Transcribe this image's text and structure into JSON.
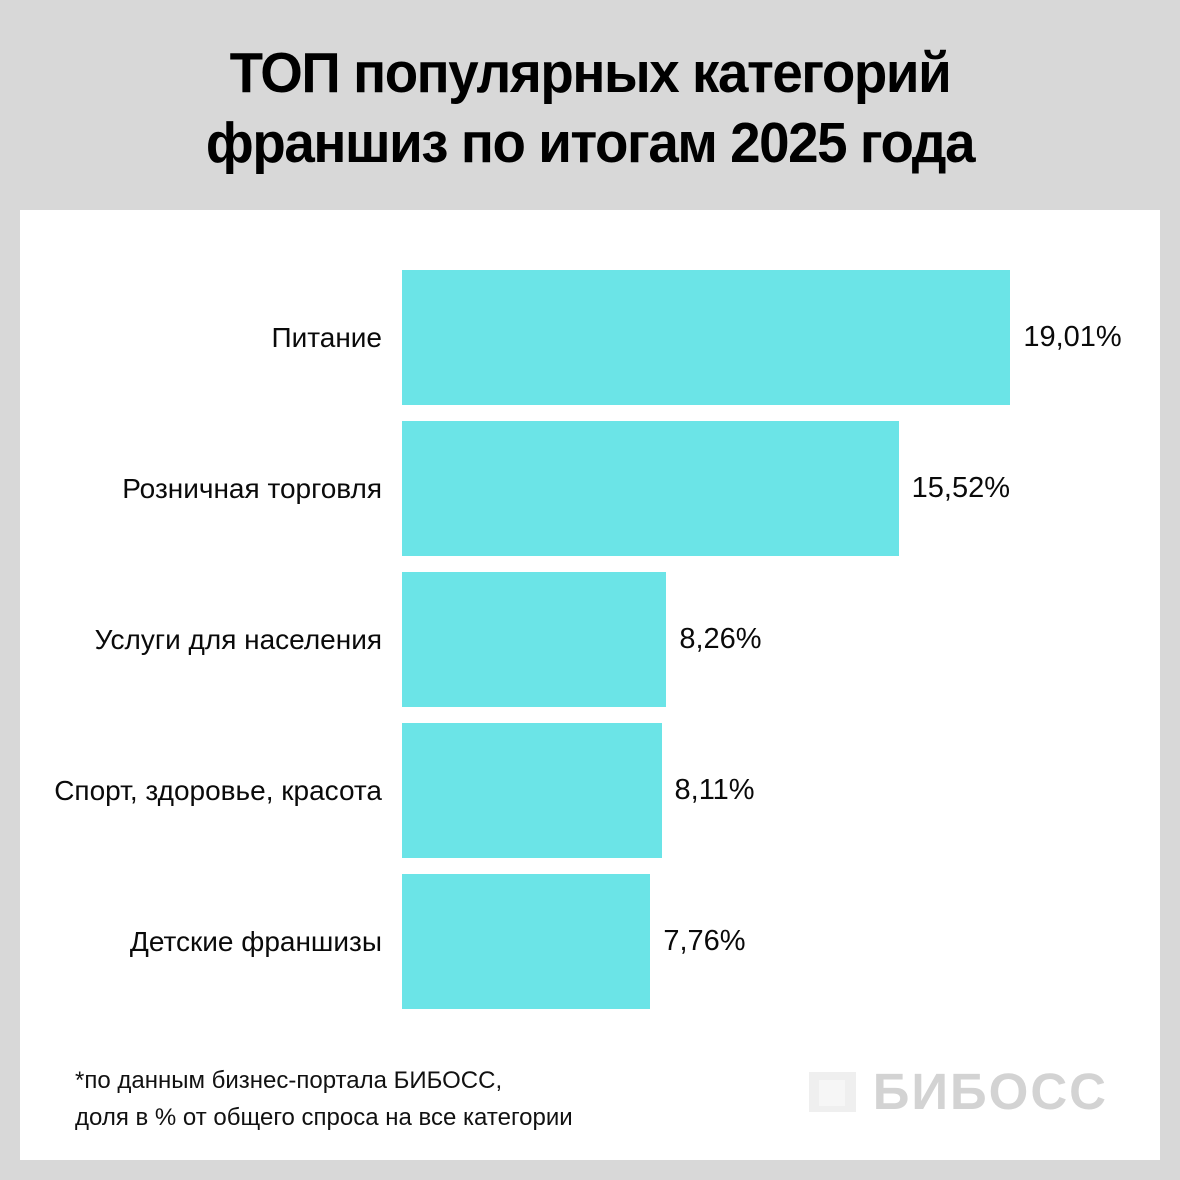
{
  "title": {
    "line1": "ТОП популярных категорий",
    "line2": "франшиз по итогам 2025 года"
  },
  "chart_data": {
    "type": "bar",
    "orientation": "horizontal",
    "title": "ТОП популярных категорий франшиз по итогам 2025 года",
    "categories": [
      "Питание",
      "Розничная торговля",
      "Услуги для населения",
      "Спорт, здоровье, красота",
      "Детские франшизы"
    ],
    "values": [
      19.01,
      15.52,
      8.26,
      8.11,
      7.76
    ],
    "value_labels": [
      "19,01%",
      "15,52%",
      "8,26%",
      "8,11%",
      "7,76%"
    ],
    "unit": "%",
    "xlim": [
      0,
      20
    ],
    "grid": false,
    "legend": false,
    "bar_color": "#6BE4E7"
  },
  "footer": {
    "note_line1": "*по данным бизнес-портала БИБОСС,",
    "note_line2": "доля в % от общего спроса на все категории",
    "logo_text": "БИБОСС"
  },
  "colors": {
    "background": "#D8D8D8",
    "card": "#FFFFFF",
    "bar": "#6BE4E7",
    "text": "#000000",
    "logo_text": "#D3D3D3"
  }
}
